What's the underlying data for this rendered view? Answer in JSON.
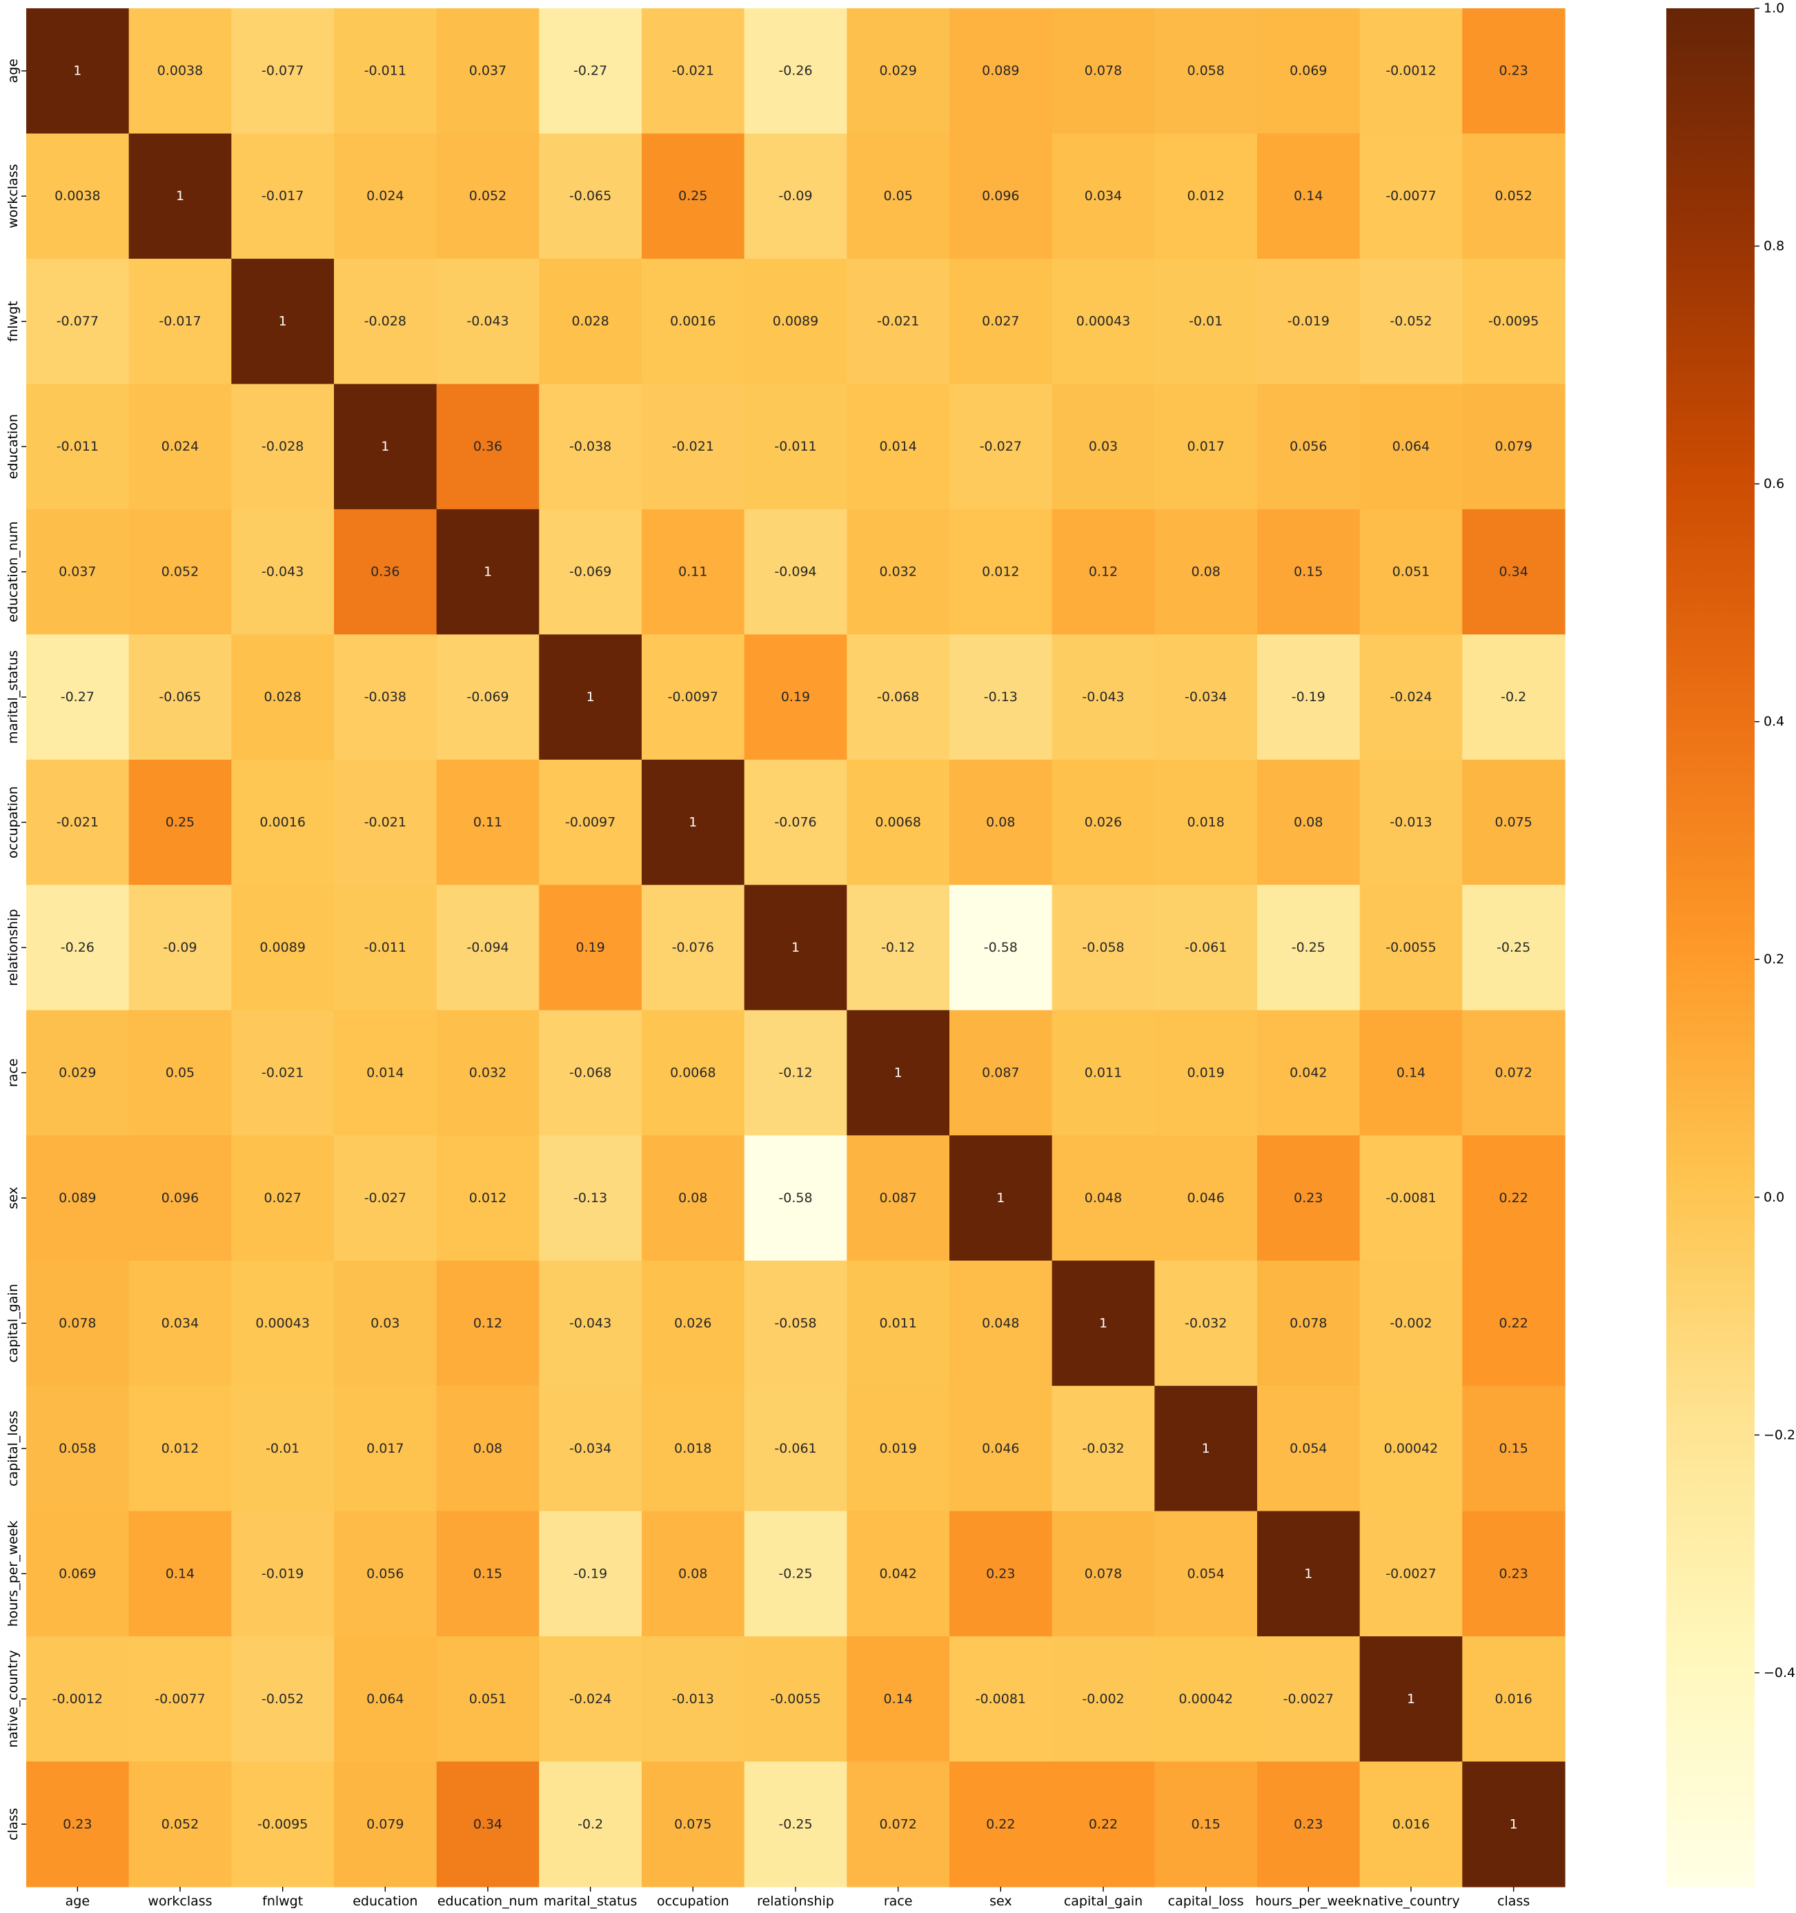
{
  "chart_data": {
    "type": "heatmap",
    "title": "",
    "xlabel": "",
    "ylabel": "",
    "grid": false,
    "legend": "colorbar-right",
    "colormap": "YlOrBr",
    "color_stops": [
      "#ffffe5",
      "#fff7bc",
      "#fee391",
      "#fec44f",
      "#fe9929",
      "#ec7014",
      "#cc4c02",
      "#993404",
      "#662506"
    ],
    "vmin": -0.58,
    "vmax": 1.0,
    "colorbar": {
      "ticks": [
        1.0,
        0.8,
        0.6,
        0.4,
        0.2,
        0.0,
        -0.2,
        -0.4
      ],
      "tick_labels": [
        "1.0",
        "0.8",
        "0.6",
        "0.4",
        "0.2",
        "0.0",
        "−0.2",
        "−0.4"
      ]
    },
    "x_labels": [
      "age",
      "workclass",
      "fnlwgt",
      "education",
      "education_num",
      "marital_status",
      "occupation",
      "relationship",
      "race",
      "sex",
      "capital_gain",
      "capital_loss",
      "hours_per_week",
      "native_country",
      "class"
    ],
    "y_labels": [
      "age",
      "workclass",
      "fnlwgt",
      "education",
      "education_num",
      "marital_status",
      "occupation",
      "relationship",
      "race",
      "sex",
      "capital_gain",
      "capital_loss",
      "hours_per_week",
      "native_country",
      "class"
    ],
    "values": [
      [
        1,
        0.0038,
        -0.077,
        -0.011,
        0.037,
        -0.27,
        -0.021,
        -0.26,
        0.029,
        0.089,
        0.078,
        0.058,
        0.069,
        -0.0012,
        0.23
      ],
      [
        0.0038,
        1,
        -0.017,
        0.024,
        0.052,
        -0.065,
        0.25,
        -0.09,
        0.05,
        0.096,
        0.034,
        0.012,
        0.14,
        -0.0077,
        0.052
      ],
      [
        -0.077,
        -0.017,
        1,
        -0.028,
        -0.043,
        0.028,
        0.0016,
        0.0089,
        -0.021,
        0.027,
        0.00043,
        -0.01,
        -0.019,
        -0.052,
        -0.0095
      ],
      [
        -0.011,
        0.024,
        -0.028,
        1,
        0.36,
        -0.038,
        -0.021,
        -0.011,
        0.014,
        -0.027,
        0.03,
        0.017,
        0.056,
        0.064,
        0.079
      ],
      [
        0.037,
        0.052,
        -0.043,
        0.36,
        1,
        -0.069,
        0.11,
        -0.094,
        0.032,
        0.012,
        0.12,
        0.08,
        0.15,
        0.051,
        0.34
      ],
      [
        -0.27,
        -0.065,
        0.028,
        -0.038,
        -0.069,
        1,
        -0.0097,
        0.19,
        -0.068,
        -0.13,
        -0.043,
        -0.034,
        -0.19,
        -0.024,
        -0.2
      ],
      [
        -0.021,
        0.25,
        0.0016,
        -0.021,
        0.11,
        -0.0097,
        1,
        -0.076,
        0.0068,
        0.08,
        0.026,
        0.018,
        0.08,
        -0.013,
        0.075
      ],
      [
        -0.26,
        -0.09,
        0.0089,
        -0.011,
        -0.094,
        0.19,
        -0.076,
        1,
        -0.12,
        -0.58,
        -0.058,
        -0.061,
        -0.25,
        -0.0055,
        -0.25
      ],
      [
        0.029,
        0.05,
        -0.021,
        0.014,
        0.032,
        -0.068,
        0.0068,
        -0.12,
        1,
        0.087,
        0.011,
        0.019,
        0.042,
        0.14,
        0.072
      ],
      [
        0.089,
        0.096,
        0.027,
        -0.027,
        0.012,
        -0.13,
        0.08,
        -0.58,
        0.087,
        1,
        0.048,
        0.046,
        0.23,
        -0.0081,
        0.22
      ],
      [
        0.078,
        0.034,
        0.00043,
        0.03,
        0.12,
        -0.043,
        0.026,
        -0.058,
        0.011,
        0.048,
        1,
        -0.032,
        0.078,
        -0.002,
        0.22
      ],
      [
        0.058,
        0.012,
        -0.01,
        0.017,
        0.08,
        -0.034,
        0.018,
        -0.061,
        0.019,
        0.046,
        -0.032,
        1,
        0.054,
        0.00042,
        0.15
      ],
      [
        0.069,
        0.14,
        -0.019,
        0.056,
        0.15,
        -0.19,
        0.08,
        -0.25,
        0.042,
        0.23,
        0.078,
        0.054,
        1,
        -0.0027,
        0.23
      ],
      [
        -0.0012,
        -0.0077,
        -0.052,
        0.064,
        0.051,
        -0.024,
        -0.013,
        -0.0055,
        0.14,
        -0.0081,
        -0.002,
        0.00042,
        -0.0027,
        1,
        0.016
      ],
      [
        0.23,
        0.052,
        -0.0095,
        0.079,
        0.34,
        -0.2,
        0.075,
        -0.25,
        0.072,
        0.22,
        0.22,
        0.15,
        0.23,
        0.016,
        1
      ]
    ]
  }
}
